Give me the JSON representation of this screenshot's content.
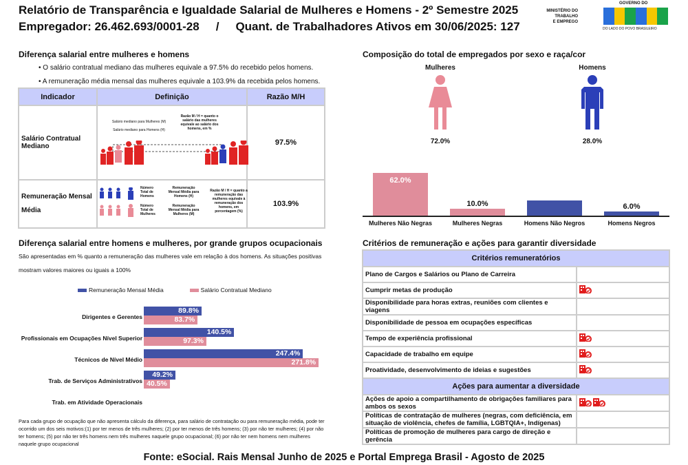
{
  "header": {
    "title": "Relatório de Transparência e Igualdade Salarial de Mulheres e Homens - 2º Semestre 2025",
    "employer": "Empregador: 26.462.693/0001-28",
    "separator": "/",
    "workers": "Quant. de Trabalhadores Ativos em 30/06/2025: 127"
  },
  "logo": {
    "ministry": [
      "MINISTÉRIO DO",
      "TRABALHO",
      "E EMPREGO"
    ],
    "gov": "GOVERNO DO",
    "brasil": "BRASIL",
    "tagline": "DO LADO DO POVO BRASILEIRO"
  },
  "gap": {
    "title": "Diferença salarial entre mulheres e homens",
    "bullets": [
      "• O salário contratual mediano das mulheres equivale a 97.5% do recebido pelos homens.",
      "• A remuneração média mensal das mulheres equivale a 103.9% da recebida pelos homens."
    ],
    "table": {
      "headers": [
        "Indicador",
        "Definição",
        "Razão M/H"
      ],
      "rows": [
        {
          "indicator": "Salário Contratual Mediano",
          "def": [
            "Salário mediano para Mulheres (M)",
            "Salário mediano para Homens (H)",
            "Razão M / H = quanto o salário das mulheres equivale ao salário dos homens, em %"
          ],
          "ratio": "97.5%"
        },
        {
          "indicator": "Remuneração Mensal Média",
          "def": [
            "Número Total de Homens",
            "Remuneração Mensal Média para Homens (H)",
            "Número Total de Mulheres",
            "Remuneração Mensal Média para Mulheres (M)",
            "Razão M / H = quanto a remuneração das mulheres equivale à remuneração dos homens, em porcentagem (%)"
          ],
          "ratio": "103.9%"
        }
      ]
    }
  },
  "composition": {
    "title": "Composição do total de empregados por sexo e raça/cor",
    "women_label": "Mulheres",
    "men_label": "Homens",
    "women_pct": "72.0%",
    "men_pct": "28.0%",
    "colors": {
      "women": "#e08d9b",
      "men": "#4152a6"
    }
  },
  "chart_data": [
    {
      "type": "bar",
      "title": "Composição do total de empregados por sexo e raça/cor",
      "categories": [
        "Mulheres Não Negras",
        "Mulheres Negras",
        "Homens Não Negros",
        "Homens Negros"
      ],
      "values": [
        62.0,
        10.0,
        22.0,
        6.0
      ],
      "labels": [
        "62.0%",
        "10.0%",
        "22.0%",
        "6.0%"
      ],
      "colors": [
        "#e08d9b",
        "#e08d9b",
        "#4152a6",
        "#4152a6"
      ],
      "ylim": [
        0,
        62
      ]
    },
    {
      "type": "bar",
      "orientation": "horizontal",
      "title": "Diferença salarial entre homens e mulheres, por grande grupos ocupacionais",
      "categories": [
        "Dirigentes e Gerentes",
        "Profissionais em Ocupações Nível Superior",
        "Técnicos de Nível Médio",
        "Trab. de Serviços Administrativos",
        "Trab. em Atividade Operacionais"
      ],
      "series": [
        {
          "name": "Remuneração Mensal Média",
          "values": [
            89.8,
            140.5,
            247.4,
            49.2,
            null
          ],
          "labels": [
            "89.8%",
            "140.5%",
            "247.4%",
            "49.2%",
            ""
          ],
          "color": "#4152a6"
        },
        {
          "name": "Salário Contratual Mediano",
          "values": [
            83.7,
            97.3,
            271.8,
            40.5,
            null
          ],
          "labels": [
            "83.7%",
            "97.3%",
            "271.8%",
            "40.5%",
            ""
          ],
          "color": "#e08d9b"
        }
      ],
      "legend": "top"
    }
  ],
  "occupation": {
    "title": "Diferença salarial entre homens e mulheres, por grande grupos ocupacionais",
    "desc1": "São apresentadas em % quanto a remuneração das mulheres vale em relação à dos homens. As situações positivas",
    "desc2": "mostram valores maiores ou iguais a 100%",
    "footnote": "Para cada grupo de ocupação que não apresenta cálculo da diferença, para salário de contratação ou para remuneração média, pode ter ocorrido um dos seis motivos:(1) por ter menos de três mulheres; (2) por ter menos de três homens; (3) por não ter mulheres; (4) por não ter homens; (5) por não ter três homens nem três mulheres naquele grupo ocupacional; (6) por não ter nem homens nem mulheres naquele grupo ocupacional"
  },
  "criteria": {
    "title": "Critérios de remuneração e ações para garantir diversidade",
    "header1": "Critérios remuneratórios",
    "rows1": [
      {
        "label": "Plano de Cargos e Salários ou Plano de Carreira",
        "icons": 0
      },
      {
        "label": "Cumprir metas de produção",
        "icons": 1
      },
      {
        "label": "Disponibilidade para horas extras, reuniões com clientes e viagens",
        "icons": 0
      },
      {
        "label": "Disponibilidade de pessoa em ocupações específicas",
        "icons": 0
      },
      {
        "label": "Tempo de experiência profissional",
        "icons": 1
      },
      {
        "label": "Capacidade de trabalho em equipe",
        "icons": 1
      },
      {
        "label": "Proatividade, desenvolvimento de ideias e sugestões",
        "icons": 1
      }
    ],
    "header2": "Ações para aumentar a diversidade",
    "rows2": [
      {
        "label": "Ações de apoio a compartilhamento de obrigações familiares para ambos os sexos",
        "icons": 2
      },
      {
        "label": "Políticas de contratação de mulheres (negras, com deficiência, em situação de violência, chefes de família, LGBTQIA+, Indígenas)",
        "icons": 0
      },
      {
        "label": "Políticas de promoção de mulheres para cargo de direção e gerência",
        "icons": 0
      }
    ],
    "icon": "company-check-icon",
    "icon_color": "#e11d1d"
  },
  "footer": "Fonte: eSocial. Rais Mensal Junho de 2025 e Portal Emprega Brasil - Agosto de 2025"
}
